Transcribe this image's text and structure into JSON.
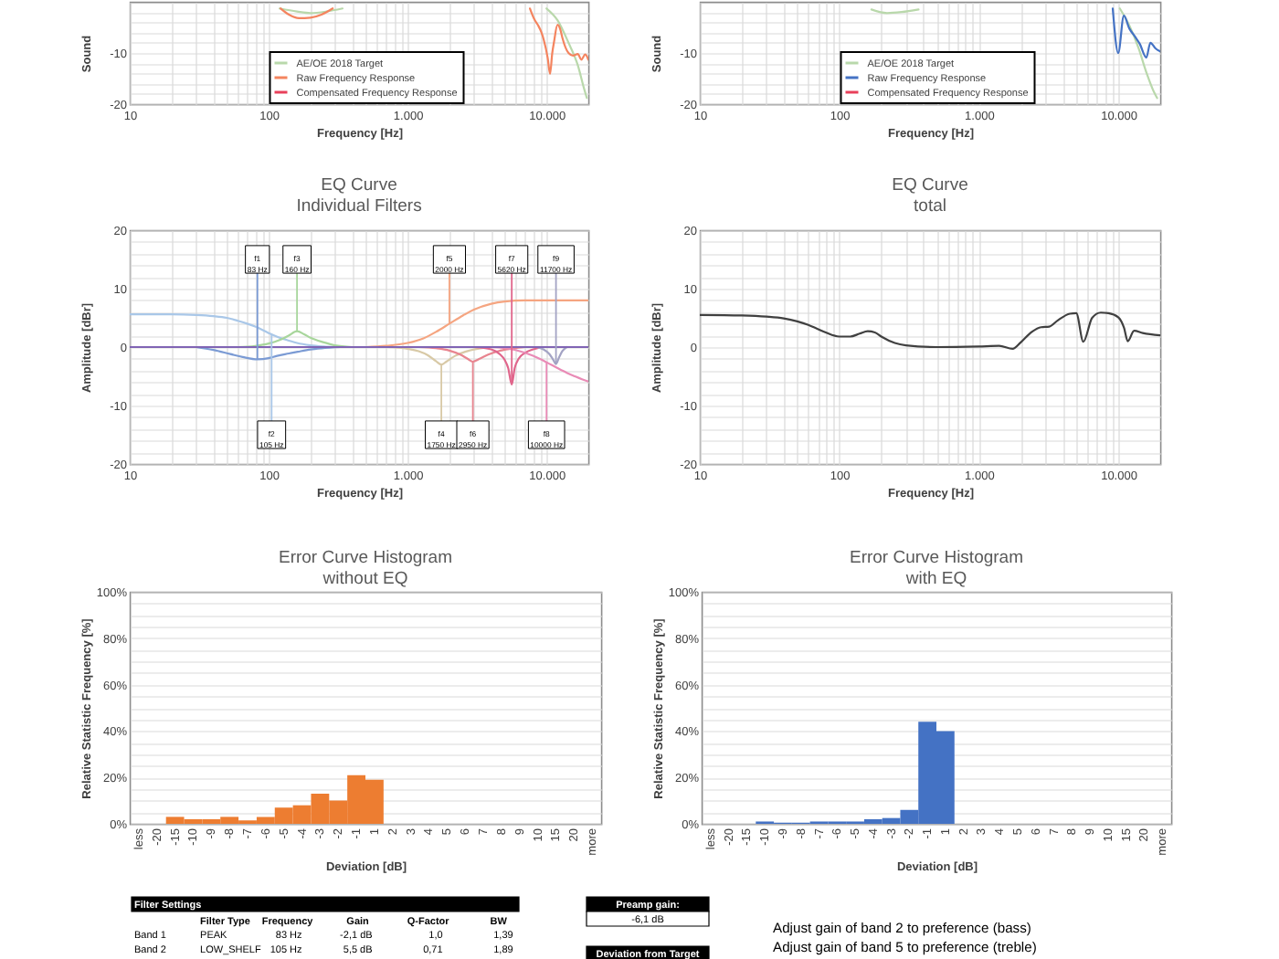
{
  "chart_data": [
    {
      "type": "line",
      "xlabel": "Frequency [Hz]",
      "ylabel": "Sound",
      "xlim": [
        10,
        20000
      ],
      "ylim": [
        -20,
        0
      ],
      "log": "x",
      "grid": true,
      "legend": "bottom",
      "xticks": [
        10,
        {
          "value": 20,
          "label": null
        },
        {
          "value": 30,
          "label": null
        },
        {
          "value": 40,
          "label": null
        },
        {
          "value": 50,
          "label": null
        },
        {
          "value": 60,
          "label": null
        },
        {
          "value": 70,
          "label": null
        },
        {
          "value": 80,
          "label": null
        },
        {
          "value": 90,
          "label": null
        },
        100,
        {
          "value": 200,
          "label": null
        },
        {
          "value": 300,
          "label": null
        },
        {
          "value": 400,
          "label": null
        },
        {
          "value": 500,
          "label": null
        },
        {
          "value": 600,
          "label": null
        },
        {
          "value": 700,
          "label": null
        },
        {
          "value": 800,
          "label": null
        },
        {
          "value": 900,
          "label": null
        },
        {
          "value": 1000,
          "label": "1.000"
        },
        {
          "value": 2000,
          "label": null
        },
        {
          "value": 3000,
          "label": null
        },
        {
          "value": 4000,
          "label": null
        },
        {
          "value": 5000,
          "label": null
        },
        {
          "value": 6000,
          "label": null
        },
        {
          "value": 7000,
          "label": null
        },
        {
          "value": 8000,
          "label": null
        },
        {
          "value": 9000,
          "label": null
        },
        {
          "value": 10000,
          "label": "10.000"
        }
      ],
      "yticks": [
        -20,
        {
          "value": -18,
          "label": null
        },
        {
          "value": -16,
          "label": null
        },
        {
          "value": -14,
          "label": null
        },
        {
          "value": -12,
          "label": null
        },
        -10,
        {
          "value": -8,
          "label": null
        },
        {
          "value": -6,
          "label": null
        },
        {
          "value": -4,
          "label": null
        },
        {
          "value": -2,
          "label": null
        }
      ],
      "series": [
        {
          "name": "AE/OE 2018 Target",
          "color": "#b9d8ab",
          "x": [
            120,
            160,
            200,
            260,
            340,
            1000,
            10000,
            12000,
            14400,
            16800,
            18600,
            19500
          ],
          "values": [
            -1.3,
            -1.9,
            -2.2,
            -1.9,
            -1.3,
            null,
            -1.3,
            -3.6,
            -8,
            -12.4,
            -16.9,
            -18.8
          ]
        },
        {
          "name": "Raw Frequency Response",
          "color": "#f4845f",
          "x": [
            122,
            140,
            165,
            200,
            240,
            289,
            1000,
            7600,
            8200,
            8700,
            9200,
            9550,
            10200,
            10600,
            11000,
            11300,
            12000,
            12600,
            13000,
            14400,
            15500,
            16800,
            17800,
            19000,
            20000
          ],
          "values": [
            -1.3,
            -2.5,
            -3.2,
            -3.1,
            -2.5,
            -1.3,
            null,
            -1.3,
            -3.5,
            -4.6,
            -6,
            -7.4,
            -11,
            -14.1,
            -10,
            -8,
            -4.5,
            -5.5,
            -7,
            -10,
            -10.5,
            -10.2,
            -11.3,
            -10.3,
            -11.3
          ]
        },
        {
          "name": "Compensated Frequency Response",
          "color": "#e8405a"
        }
      ]
    },
    {
      "type": "line",
      "xlabel": "Frequency [Hz]",
      "ylabel": "Sound",
      "xlim": [
        10,
        20000
      ],
      "ylim": [
        -20,
        0
      ],
      "log": "x",
      "grid": true,
      "legend": "bottom",
      "xticks": [
        10,
        {
          "value": 20,
          "label": null
        },
        {
          "value": 30,
          "label": null
        },
        {
          "value": 40,
          "label": null
        },
        {
          "value": 50,
          "label": null
        },
        {
          "value": 60,
          "label": null
        },
        {
          "value": 70,
          "label": null
        },
        {
          "value": 80,
          "label": null
        },
        {
          "value": 90,
          "label": null
        },
        100,
        {
          "value": 200,
          "label": null
        },
        {
          "value": 300,
          "label": null
        },
        {
          "value": 400,
          "label": null
        },
        {
          "value": 500,
          "label": null
        },
        {
          "value": 600,
          "label": null
        },
        {
          "value": 700,
          "label": null
        },
        {
          "value": 800,
          "label": null
        },
        {
          "value": 900,
          "label": null
        },
        {
          "value": 1000,
          "label": "1.000"
        },
        {
          "value": 2000,
          "label": null
        },
        {
          "value": 3000,
          "label": null
        },
        {
          "value": 4000,
          "label": null
        },
        {
          "value": 5000,
          "label": null
        },
        {
          "value": 6000,
          "label": null
        },
        {
          "value": 7000,
          "label": null
        },
        {
          "value": 8000,
          "label": null
        },
        {
          "value": 9000,
          "label": null
        },
        {
          "value": 10000,
          "label": "10.000"
        }
      ],
      "yticks": [
        -20,
        {
          "value": -18,
          "label": null
        },
        {
          "value": -16,
          "label": null
        },
        {
          "value": -14,
          "label": null
        },
        {
          "value": -12,
          "label": null
        },
        -10,
        {
          "value": -8,
          "label": null
        },
        {
          "value": -6,
          "label": null
        },
        {
          "value": -4,
          "label": null
        },
        {
          "value": -2,
          "label": null
        }
      ],
      "series": [
        {
          "name": "AE/OE 2018 Target",
          "color": "#b9d8ab",
          "x": [
            170,
            220,
            280,
            370,
            1000,
            10260,
            12000,
            14000,
            16000,
            18000,
            19000
          ],
          "values": [
            -1.5,
            -2.2,
            -2.0,
            -1.5,
            null,
            -1.3,
            -4.6,
            -9.1,
            -14,
            -17.6,
            -18.8
          ]
        },
        {
          "name": "Raw Frequency Response",
          "color": "#4472c4",
          "x": [
            9130,
            10000,
            10970,
            12000,
            13270,
            14250,
            15900,
            17000,
            18500,
            20000
          ],
          "values": [
            -1.3,
            -10,
            -2.7,
            -5.2,
            -6.9,
            -8.2,
            -10.9,
            -8,
            -9.1,
            -9.7
          ]
        },
        {
          "name": "Compensated Frequency Response",
          "color": "#e8405a"
        }
      ]
    },
    {
      "type": "line",
      "title": "EQ Curve",
      "subtitle": "Individual Filters",
      "xlabel": "Frequency [Hz]",
      "ylabel": "Amplitude [dBr]",
      "xlim": [
        10,
        20000
      ],
      "ylim": [
        -20,
        20
      ],
      "log": "x",
      "grid": true,
      "xticks": [
        10,
        {
          "value": 20,
          "label": null
        },
        {
          "value": 30,
          "label": null
        },
        {
          "value": 40,
          "label": null
        },
        {
          "value": 50,
          "label": null
        },
        {
          "value": 60,
          "label": null
        },
        {
          "value": 70,
          "label": null
        },
        {
          "value": 80,
          "label": null
        },
        {
          "value": 90,
          "label": null
        },
        100,
        {
          "value": 200,
          "label": null
        },
        {
          "value": 300,
          "label": null
        },
        {
          "value": 400,
          "label": null
        },
        {
          "value": 500,
          "label": null
        },
        {
          "value": 600,
          "label": null
        },
        {
          "value": 700,
          "label": null
        },
        {
          "value": 800,
          "label": null
        },
        {
          "value": 900,
          "label": null
        },
        {
          "value": 1000,
          "label": "1.000"
        },
        {
          "value": 2000,
          "label": null
        },
        {
          "value": 3000,
          "label": null
        },
        {
          "value": 4000,
          "label": null
        },
        {
          "value": 5000,
          "label": null
        },
        {
          "value": 6000,
          "label": null
        },
        {
          "value": 7000,
          "label": null
        },
        {
          "value": 8000,
          "label": null
        },
        {
          "value": 9000,
          "label": null
        },
        {
          "value": 10000,
          "label": "10.000"
        }
      ],
      "yticks": [
        -20,
        {
          "value": -18,
          "label": null
        },
        {
          "value": -16,
          "label": null
        },
        {
          "value": -14,
          "label": null
        },
        {
          "value": -12,
          "label": null
        },
        -10,
        {
          "value": -8,
          "label": null
        },
        {
          "value": -6,
          "label": null
        },
        {
          "value": -4,
          "label": null
        },
        {
          "value": -2,
          "label": null
        },
        0,
        {
          "value": 2,
          "label": null
        },
        {
          "value": 4,
          "label": null
        },
        {
          "value": 6,
          "label": null
        },
        {
          "value": 8,
          "label": null
        },
        10,
        {
          "value": 12,
          "label": null
        },
        {
          "value": 14,
          "label": null
        },
        {
          "value": 16,
          "label": null
        },
        {
          "value": 18,
          "label": null
        },
        20
      ],
      "series": [
        {
          "color": "#7b9bd4",
          "x": [
            30,
            40,
            53,
            65,
            83,
            100,
            115,
            140,
            162,
            200,
            240,
            330
          ],
          "values": [
            0,
            -0.5,
            -1.2,
            -1.7,
            -2.1,
            -1.9,
            -1.5,
            -1.1,
            -0.8,
            -0.4,
            -0.2,
            0
          ]
        },
        {
          "color": "#a9c7e8",
          "x": [
            10,
            20,
            30,
            40,
            50,
            60,
            70,
            80,
            100,
            120,
            140,
            160,
            200,
            250,
            300
          ],
          "values": [
            5.6,
            5.6,
            5.5,
            5.3,
            5.0,
            4.5,
            4.0,
            3.5,
            2.4,
            1.6,
            1.1,
            0.7,
            0.3,
            0.1,
            0
          ]
        },
        {
          "color": "#a8d69c",
          "x": [
            60,
            80,
            100,
            120,
            140,
            160,
            180,
            200,
            250,
            300,
            400
          ],
          "values": [
            0,
            0.2,
            0.6,
            1.2,
            2.0,
            2.7,
            2.2,
            1.6,
            0.8,
            0.3,
            0
          ]
        },
        {
          "color": "#d8c9a6",
          "x": [
            700,
            1000,
            1200,
            1400,
            1600,
            1750,
            1900,
            2200,
            2600,
            3200,
            4000
          ],
          "values": [
            0,
            -0.3,
            -0.7,
            -1.4,
            -2.4,
            -3.0,
            -2.5,
            -1.5,
            -0.8,
            -0.3,
            0
          ]
        },
        {
          "color": "#f5a581",
          "x": [
            500,
            700,
            1000,
            1300,
            1600,
            2000,
            2500,
            3000,
            4000,
            5000,
            7000,
            10000,
            20000
          ],
          "values": [
            0,
            0.2,
            0.7,
            1.5,
            2.6,
            4.0,
            5.4,
            6.4,
            7.4,
            7.8,
            8.0,
            8.0,
            8.0
          ]
        },
        {
          "color": "#e8848f",
          "x": [
            1200,
            1600,
            2000,
            2400,
            2700,
            2950,
            3300,
            3800,
            4500,
            5500,
            7000
          ],
          "values": [
            0,
            -0.2,
            -0.6,
            -1.3,
            -2.0,
            -2.5,
            -2.0,
            -1.3,
            -0.7,
            -0.3,
            0
          ]
        },
        {
          "color": "#e0668c",
          "x": [
            3000,
            4000,
            4600,
            5000,
            5300,
            5620,
            5900,
            6300,
            7000,
            8000,
            9500
          ],
          "values": [
            0,
            -0.4,
            -1.2,
            -2.2,
            -3.6,
            -6.4,
            -3.6,
            -2.0,
            -1.0,
            -0.4,
            0
          ]
        },
        {
          "color": "#e98bb6",
          "x": [
            4000,
            6000,
            8000,
            10000,
            12000,
            14000,
            16000,
            18000,
            20000
          ],
          "values": [
            0,
            -0.5,
            -1.5,
            -2.6,
            -3.6,
            -4.4,
            -5.0,
            -5.5,
            -5.9
          ]
        },
        {
          "color": "#a3a3c4",
          "x": [
            8500,
            9500,
            10500,
            11200,
            11700,
            12300,
            13000,
            14000
          ],
          "values": [
            0,
            -0.4,
            -1.2,
            -2.2,
            -2.9,
            -1.8,
            -0.7,
            0
          ]
        },
        {
          "color": "#8064b4",
          "x": [
            10,
            20000
          ],
          "values": [
            0,
            0
          ]
        }
      ],
      "annotations": [
        {
          "text": "f1\n83 Hz",
          "x": 83,
          "y": 15
        },
        {
          "text": "f2\n105 Hz",
          "x": 105,
          "y": -15
        },
        {
          "text": "f3\n160 Hz",
          "x": 160,
          "y": 15
        },
        {
          "text": "f4\n1750 Hz",
          "x": 1750,
          "y": -15
        },
        {
          "text": "f5\n2000 Hz",
          "x": 2000,
          "y": 15
        },
        {
          "text": "f6\n2950 Hz",
          "x": 2950,
          "y": -15
        },
        {
          "text": "f7\n5620 Hz",
          "x": 5620,
          "y": 15
        },
        {
          "text": "f8\n10000 Hz",
          "x": 10000,
          "y": -15
        },
        {
          "text": "f9\n11700 Hz",
          "x": 11700,
          "y": 15
        }
      ]
    },
    {
      "type": "line",
      "title": "EQ Curve",
      "subtitle": "total",
      "xlabel": "Frequency [Hz]",
      "ylabel": "Amplitude [dBr]",
      "xlim": [
        10,
        20000
      ],
      "ylim": [
        -20,
        20
      ],
      "log": "x",
      "grid": true,
      "xticks": [
        10,
        {
          "value": 20,
          "label": null
        },
        {
          "value": 30,
          "label": null
        },
        {
          "value": 40,
          "label": null
        },
        {
          "value": 50,
          "label": null
        },
        {
          "value": 60,
          "label": null
        },
        {
          "value": 70,
          "label": null
        },
        {
          "value": 80,
          "label": null
        },
        {
          "value": 90,
          "label": null
        },
        100,
        {
          "value": 200,
          "label": null
        },
        {
          "value": 300,
          "label": null
        },
        {
          "value": 400,
          "label": null
        },
        {
          "value": 500,
          "label": null
        },
        {
          "value": 600,
          "label": null
        },
        {
          "value": 700,
          "label": null
        },
        {
          "value": 800,
          "label": null
        },
        {
          "value": 900,
          "label": null
        },
        {
          "value": 1000,
          "label": "1.000"
        },
        {
          "value": 2000,
          "label": null
        },
        {
          "value": 3000,
          "label": null
        },
        {
          "value": 4000,
          "label": null
        },
        {
          "value": 5000,
          "label": null
        },
        {
          "value": 6000,
          "label": null
        },
        {
          "value": 7000,
          "label": null
        },
        {
          "value": 8000,
          "label": null
        },
        {
          "value": 9000,
          "label": null
        },
        {
          "value": 10000,
          "label": "10.000"
        }
      ],
      "yticks": [
        -20,
        {
          "value": -18,
          "label": null
        },
        {
          "value": -16,
          "label": null
        },
        {
          "value": -14,
          "label": null
        },
        {
          "value": -12,
          "label": null
        },
        -10,
        {
          "value": -8,
          "label": null
        },
        {
          "value": -6,
          "label": null
        },
        {
          "value": -4,
          "label": null
        },
        {
          "value": -2,
          "label": null
        },
        0,
        {
          "value": 2,
          "label": null
        },
        {
          "value": 4,
          "label": null
        },
        {
          "value": 6,
          "label": null
        },
        {
          "value": 8,
          "label": null
        },
        10,
        {
          "value": 12,
          "label": null
        },
        {
          "value": 14,
          "label": null
        },
        {
          "value": 16,
          "label": null
        },
        {
          "value": 18,
          "label": null
        },
        20
      ],
      "series": [
        {
          "color": "#404040",
          "x": [
            10,
            20,
            30,
            40,
            50,
            60,
            70,
            80,
            100,
            120,
            140,
            160,
            180,
            200,
            250,
            300,
            500,
            1000,
            1400,
            1750,
            2000,
            2400,
            2800,
            3200,
            3700,
            4500,
            5000,
            5620,
            6500,
            7500,
            8500,
            10000,
            11000,
            11700,
            13000,
            15000,
            20000
          ],
          "values": [
            5.5,
            5.4,
            5.2,
            4.9,
            4.4,
            3.8,
            3.1,
            2.5,
            1.8,
            1.8,
            2.3,
            2.7,
            2.5,
            1.8,
            0.7,
            0.3,
            0.0,
            0.1,
            0.2,
            -0.3,
            0.8,
            2.6,
            3.4,
            3.5,
            4.6,
            5.7,
            5.8,
            0.9,
            5.0,
            5.9,
            5.8,
            5.1,
            3.3,
            1.0,
            2.8,
            2.4,
            2.0
          ]
        }
      ]
    },
    {
      "type": "bar",
      "title": "Error Curve Histogram",
      "subtitle": "without EQ",
      "xlabel": "Deviation [dB]",
      "ylabel": "Relative Statistic Frequency [%]",
      "categories": [
        "less",
        "-20",
        "-15",
        "-10",
        "-9",
        "-8",
        "-7",
        "-6",
        "-5",
        "-4",
        "-3",
        "-2",
        "-1",
        "1",
        "2",
        "3",
        "4",
        "5",
        "6",
        "7",
        "8",
        "9",
        "10",
        "15",
        "20",
        "more"
      ],
      "values": [
        0,
        0,
        3,
        2,
        2,
        3,
        1.5,
        3,
        7,
        8,
        13,
        10,
        21,
        19,
        0,
        0,
        0,
        0,
        0,
        0,
        0,
        0,
        0,
        0,
        0,
        0
      ],
      "color": "#ed7d31",
      "ylim": [
        0,
        100
      ],
      "grid": "y",
      "yticks": [
        {
          "value": 0,
          "label": "0%"
        },
        {
          "value": 5,
          "label": null
        },
        {
          "value": 10,
          "label": null
        },
        {
          "value": 15,
          "label": null
        },
        {
          "value": 20,
          "label": "20%"
        },
        {
          "value": 25,
          "label": null
        },
        {
          "value": 30,
          "label": null
        },
        {
          "value": 35,
          "label": null
        },
        {
          "value": 40,
          "label": "40%"
        },
        {
          "value": 45,
          "label": null
        },
        {
          "value": 50,
          "label": null
        },
        {
          "value": 55,
          "label": null
        },
        {
          "value": 60,
          "label": "60%"
        },
        {
          "value": 65,
          "label": null
        },
        {
          "value": 70,
          "label": null
        },
        {
          "value": 75,
          "label": null
        },
        {
          "value": 80,
          "label": "80%"
        },
        {
          "value": 85,
          "label": null
        },
        {
          "value": 90,
          "label": null
        },
        {
          "value": 95,
          "label": null
        },
        {
          "value": 100,
          "label": "100%"
        }
      ]
    },
    {
      "type": "bar",
      "title": "Error Curve Histogram",
      "subtitle": "with EQ",
      "xlabel": "Deviation [dB]",
      "ylabel": "Relative Statistic Frequency [%]",
      "categories": [
        "less",
        "-20",
        "-15",
        "-10",
        "-9",
        "-8",
        "-7",
        "-6",
        "-5",
        "-4",
        "-3",
        "-2",
        "-1",
        "1",
        "2",
        "3",
        "4",
        "5",
        "6",
        "7",
        "8",
        "9",
        "10",
        "15",
        "20",
        "more"
      ],
      "values": [
        0,
        0,
        0,
        1,
        0.5,
        0.5,
        1,
        1,
        1,
        2,
        2.5,
        6,
        44,
        40,
        0,
        0,
        0,
        0,
        0,
        0,
        0,
        0,
        0,
        0,
        0,
        0
      ],
      "color": "#4472c4",
      "ylim": [
        0,
        100
      ],
      "grid": "y",
      "yticks": [
        {
          "value": 0,
          "label": "0%"
        },
        {
          "value": 5,
          "label": null
        },
        {
          "value": 10,
          "label": null
        },
        {
          "value": 15,
          "label": null
        },
        {
          "value": 20,
          "label": "20%"
        },
        {
          "value": 25,
          "label": null
        },
        {
          "value": 30,
          "label": null
        },
        {
          "value": 35,
          "label": null
        },
        {
          "value": 40,
          "label": "40%"
        },
        {
          "value": 45,
          "label": null
        },
        {
          "value": 50,
          "label": null
        },
        {
          "value": 55,
          "label": null
        },
        {
          "value": 60,
          "label": "60%"
        },
        {
          "value": 65,
          "label": null
        },
        {
          "value": 70,
          "label": null
        },
        {
          "value": 75,
          "label": null
        },
        {
          "value": 80,
          "label": "80%"
        },
        {
          "value": 85,
          "label": null
        },
        {
          "value": 90,
          "label": null
        },
        {
          "value": 95,
          "label": null
        },
        {
          "value": 100,
          "label": "100%"
        }
      ]
    },
    {
      "type": "other",
      "title": "Filter Settings",
      "annotations": [
        "\tFilter Type\tFrequency\tGain\tQ-Factor\tBW",
        "Band 1\tPEAK\t83 Hz\t-2,1 dB\t1,0\t1,39",
        "Band 2\tLOW_SHELF\t105 Hz\t5,5 dB\t0,71\t1,89"
      ]
    },
    {
      "type": "other",
      "title": "Preamp gain:",
      "annotations": [
        "-6,1 dB"
      ]
    },
    {
      "type": "other",
      "title": "Deviation from Target"
    },
    {
      "type": "other",
      "annotations": [
        "Adjust gain of band 2 to preference (bass)",
        "Adjust gain of band 5 to preference (treble)"
      ]
    }
  ]
}
